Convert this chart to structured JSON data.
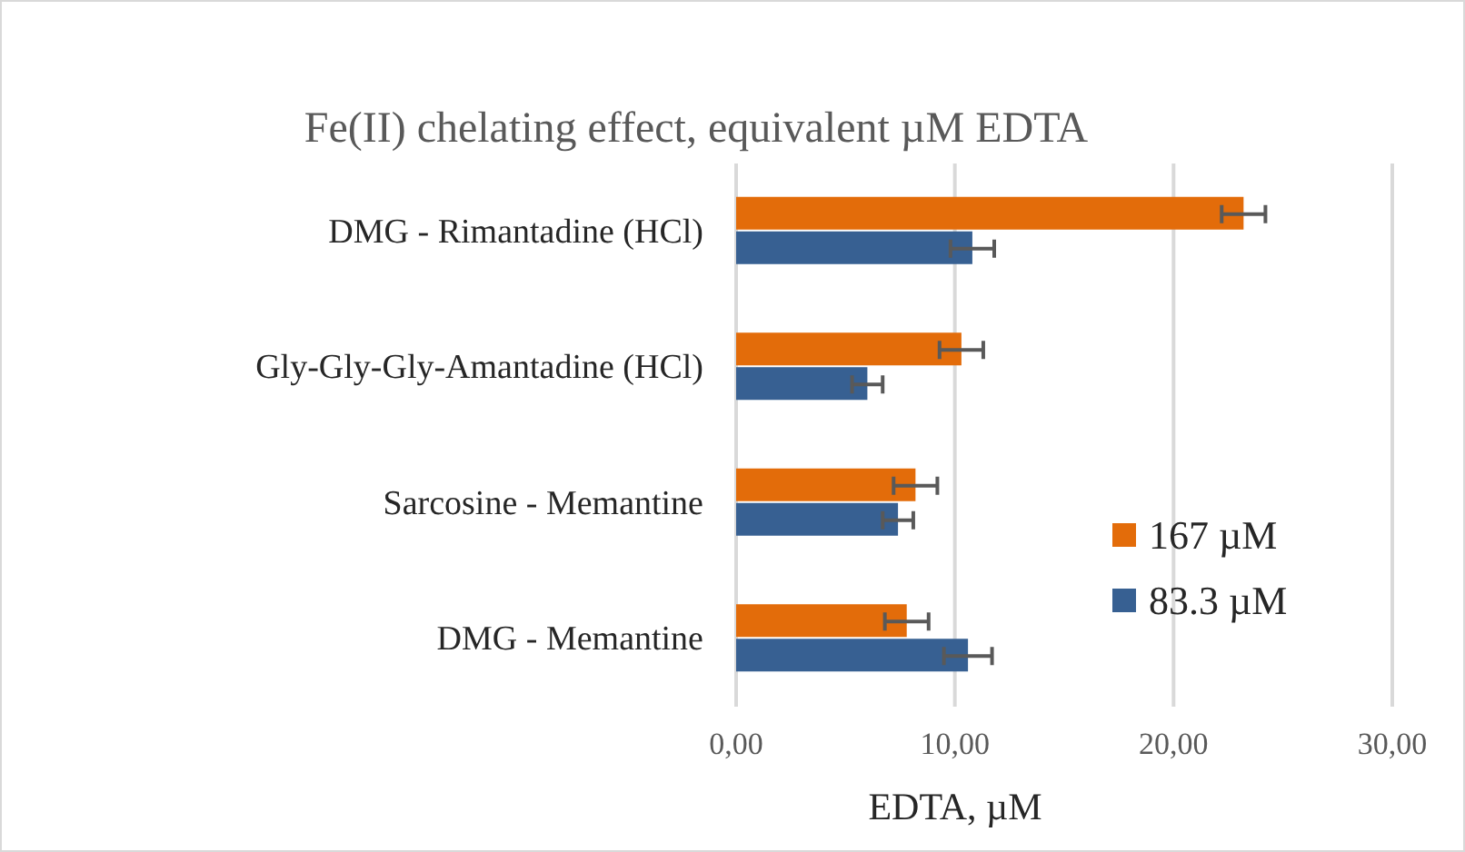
{
  "chart_data": {
    "type": "bar",
    "orientation": "horizontal",
    "title": "Fe(II) chelating  effect,  equivalent  µM EDTA",
    "xlabel": "EDTA, µM",
    "categories": [
      "DMG - Rimantadine (HCl)",
      "Gly-Gly-Gly-Amantadine (HCl)",
      "Sarcosine - Memantine",
      "DMG -  Memantine"
    ],
    "series": [
      {
        "name": "167 µM",
        "color": "#e36c0a",
        "values": [
          23.2,
          10.3,
          8.2,
          7.8
        ],
        "errors": [
          1.0,
          1.0,
          1.0,
          1.0
        ]
      },
      {
        "name": "83.3 µM",
        "color": "#376092",
        "values": [
          10.8,
          6.0,
          7.4,
          10.6
        ],
        "errors": [
          1.0,
          0.7,
          0.7,
          1.1
        ]
      }
    ],
    "xlim": [
      0,
      30
    ],
    "xticks": [
      {
        "value": 0,
        "label": "0,00"
      },
      {
        "value": 10,
        "label": "10,00"
      },
      {
        "value": 20,
        "label": "20,00"
      },
      {
        "value": 30,
        "label": "30,00"
      }
    ],
    "grid": "x",
    "legend": "right"
  }
}
